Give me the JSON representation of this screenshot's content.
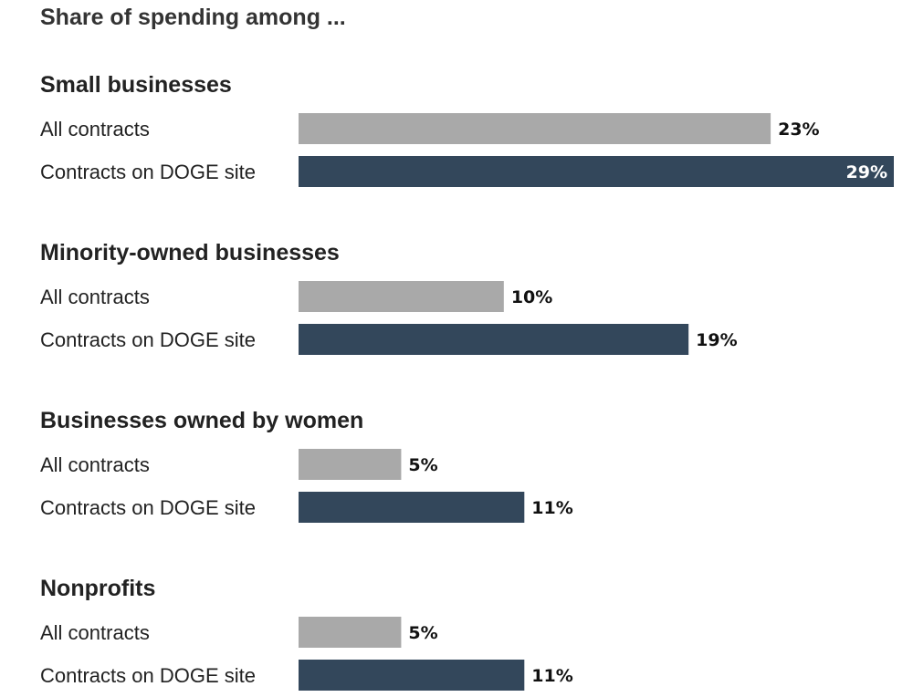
{
  "chart_data": {
    "type": "bar",
    "orientation": "horizontal",
    "title": "Share of spending among ...",
    "unit": "%",
    "xlim": [
      0,
      29
    ],
    "grid": false,
    "legend": "none",
    "categories": [
      "Small businesses",
      "Minority-owned businesses",
      "Businesses owned by women",
      "Nonprofits"
    ],
    "series": [
      {
        "name": "All contracts",
        "color": "#a9a9a9",
        "values": [
          23,
          10,
          5,
          5
        ],
        "labels": [
          "23%",
          "10%",
          "5%",
          "5%"
        ]
      },
      {
        "name": "Contracts on DOGE site",
        "color": "#33475b",
        "values": [
          29,
          19,
          11,
          11
        ],
        "labels": [
          "29%",
          "19%",
          "11%",
          "11%"
        ]
      }
    ]
  }
}
